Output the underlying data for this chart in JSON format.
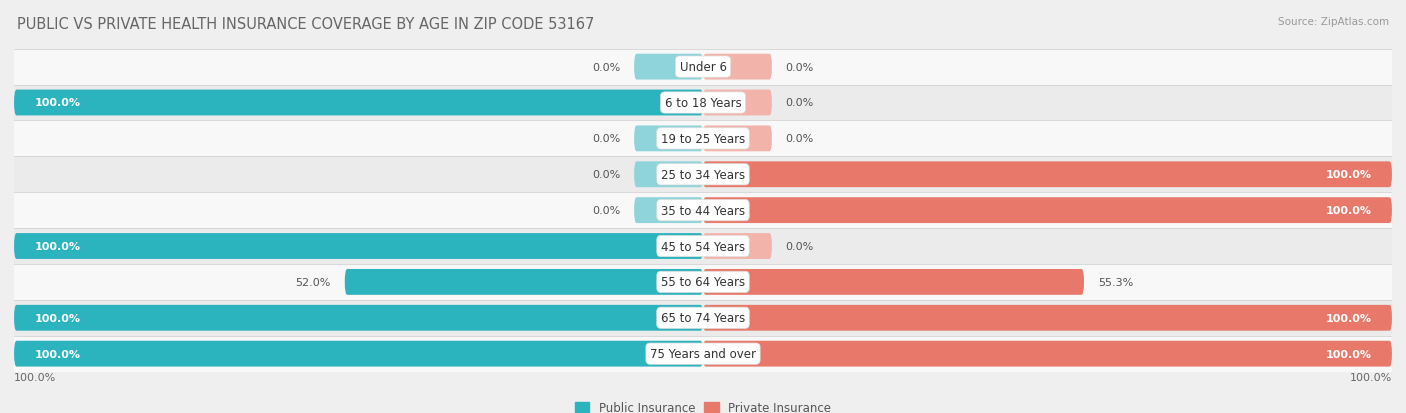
{
  "title": "PUBLIC VS PRIVATE HEALTH INSURANCE COVERAGE BY AGE IN ZIP CODE 53167",
  "source": "Source: ZipAtlas.com",
  "categories": [
    "Under 6",
    "6 to 18 Years",
    "19 to 25 Years",
    "25 to 34 Years",
    "35 to 44 Years",
    "45 to 54 Years",
    "55 to 64 Years",
    "65 to 74 Years",
    "75 Years and over"
  ],
  "public_values": [
    0.0,
    100.0,
    0.0,
    0.0,
    0.0,
    100.0,
    52.0,
    100.0,
    100.0
  ],
  "private_values": [
    0.0,
    0.0,
    0.0,
    100.0,
    100.0,
    0.0,
    55.3,
    100.0,
    100.0
  ],
  "public_color": "#2bb3be",
  "private_color": "#e8796a",
  "public_color_light": "#8ed4da",
  "private_color_light": "#f2b3aa",
  "bg_color": "#efefef",
  "row_color_odd": "#f8f8f8",
  "row_color_even": "#ebebeb",
  "bar_height": 0.72,
  "stub_size": 10.0,
  "title_fontsize": 10.5,
  "label_fontsize": 8.5,
  "cat_fontsize": 8.5,
  "value_fontsize": 8.0,
  "x_min": -100,
  "x_max": 100,
  "legend_public": "Public Insurance",
  "legend_private": "Private Insurance"
}
